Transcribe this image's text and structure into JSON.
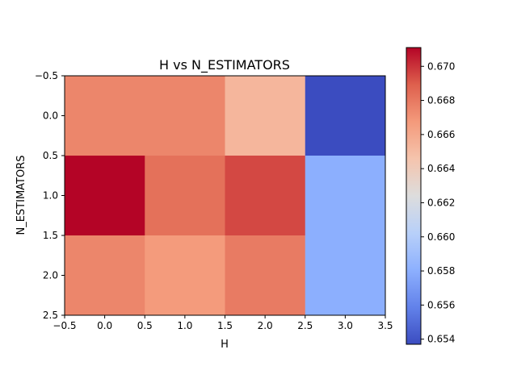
{
  "chart_data": {
    "type": "heatmap",
    "title": "H vs N_ESTIMATORS",
    "xlabel": "H",
    "ylabel": "N_ESTIMATORS",
    "xlim": [
      -0.5,
      3.5
    ],
    "ylim": [
      2.5,
      -0.5
    ],
    "x_ticks": [
      "-0.5",
      "0.0",
      "0.5",
      "1.0",
      "1.5",
      "2.0",
      "2.5",
      "3.0",
      "3.5"
    ],
    "y_ticks": [
      "-0.5",
      "0.0",
      "0.5",
      "1.0",
      "1.5",
      "2.0",
      "2.5"
    ],
    "x": [
      0,
      1,
      2,
      3
    ],
    "y": [
      0,
      1,
      2
    ],
    "values": [
      [
        0.6675,
        0.6675,
        0.6653,
        0.6537
      ],
      [
        0.6711,
        0.6683,
        0.6695,
        0.658
      ],
      [
        0.6675,
        0.6667,
        0.6679,
        0.658
      ]
    ],
    "colormap": "coolwarm",
    "colorbar": {
      "vmin": 0.6537,
      "vmax": 0.6711,
      "ticks": [
        "0.654",
        "0.656",
        "0.658",
        "0.660",
        "0.662",
        "0.664",
        "0.666",
        "0.668",
        "0.670"
      ]
    },
    "grid": false
  }
}
